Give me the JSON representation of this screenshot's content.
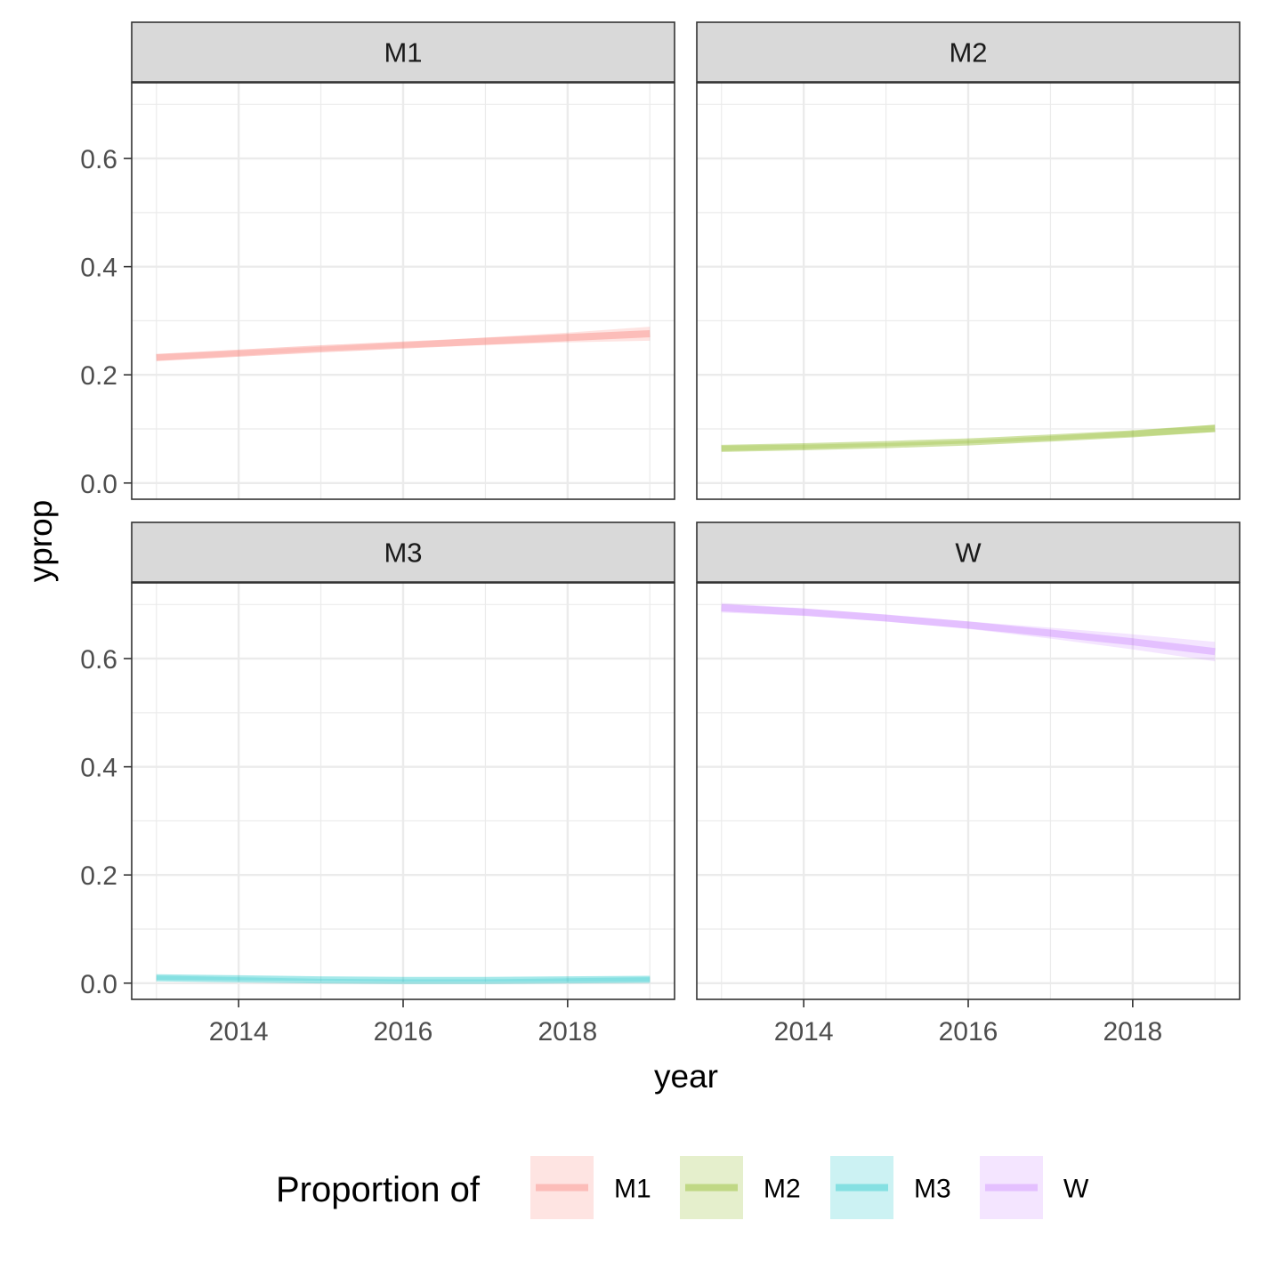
{
  "chart_data": {
    "type": "line",
    "facets": [
      "M1",
      "M2",
      "M3",
      "W"
    ],
    "xlabel": "year",
    "ylabel": "yprop",
    "x_ticks": [
      2014,
      2016,
      2018
    ],
    "y_ticks": [
      "0.0",
      "0.2",
      "0.4",
      "0.6"
    ],
    "xlim": [
      2012.7,
      2019.3
    ],
    "ylim": [
      -0.03,
      0.74
    ],
    "grid": true,
    "legend": {
      "title": "Proportion of",
      "position": "bottom",
      "entries": [
        "M1",
        "M2",
        "M3",
        "W"
      ]
    },
    "colors": {
      "M1": "#F8766D",
      "M2": "#7CAE00",
      "M3": "#00BFC4",
      "W": "#C77CFF"
    },
    "series": [
      {
        "name": "M1",
        "x": [
          2013,
          2014,
          2015,
          2016,
          2017,
          2018,
          2019
        ],
        "y": [
          0.232,
          0.24,
          0.248,
          0.255,
          0.262,
          0.269,
          0.276
        ],
        "lower": [
          0.226,
          0.235,
          0.244,
          0.25,
          0.255,
          0.26,
          0.263
        ],
        "upper": [
          0.238,
          0.245,
          0.252,
          0.26,
          0.269,
          0.278,
          0.289
        ]
      },
      {
        "name": "M2",
        "x": [
          2013,
          2014,
          2015,
          2016,
          2017,
          2018,
          2019
        ],
        "y": [
          0.064,
          0.067,
          0.071,
          0.076,
          0.083,
          0.091,
          0.101
        ],
        "lower": [
          0.059,
          0.063,
          0.068,
          0.073,
          0.079,
          0.086,
          0.094
        ],
        "upper": [
          0.069,
          0.071,
          0.074,
          0.079,
          0.087,
          0.096,
          0.108
        ]
      },
      {
        "name": "M3",
        "x": [
          2013,
          2014,
          2015,
          2016,
          2017,
          2018,
          2019
        ],
        "y": [
          0.01,
          0.008,
          0.006,
          0.005,
          0.005,
          0.006,
          0.007
        ],
        "lower": [
          0.006,
          0.005,
          0.004,
          0.003,
          0.003,
          0.003,
          0.003
        ],
        "upper": [
          0.014,
          0.011,
          0.008,
          0.007,
          0.007,
          0.009,
          0.011
        ]
      },
      {
        "name": "W",
        "x": [
          2013,
          2014,
          2015,
          2016,
          2017,
          2018,
          2019
        ],
        "y": [
          0.694,
          0.686,
          0.675,
          0.662,
          0.647,
          0.631,
          0.613
        ],
        "lower": [
          0.685,
          0.679,
          0.669,
          0.655,
          0.637,
          0.617,
          0.595
        ],
        "upper": [
          0.703,
          0.693,
          0.681,
          0.669,
          0.657,
          0.645,
          0.631
        ]
      }
    ]
  }
}
